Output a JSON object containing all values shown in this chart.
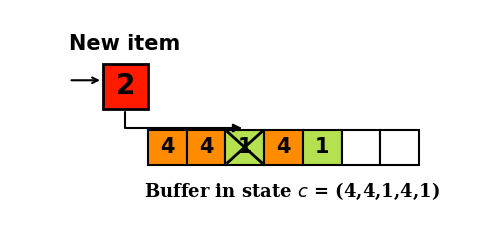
{
  "title_text": "New item",
  "new_item_label": "2",
  "new_item_color": "#ff1a00",
  "new_item_border": "#000000",
  "buffer_cells": [
    {
      "label": "4",
      "color": "#ff8c00",
      "crossed": false
    },
    {
      "label": "4",
      "color": "#ff8c00",
      "crossed": false
    },
    {
      "label": "1",
      "color": "#b5e050",
      "crossed": true
    },
    {
      "label": "4",
      "color": "#ff8c00",
      "crossed": false
    },
    {
      "label": "1",
      "color": "#b5e050",
      "crossed": false
    },
    {
      "label": "",
      "color": "#ffffff",
      "crossed": false
    },
    {
      "label": "",
      "color": "#ffffff",
      "crossed": false
    }
  ],
  "bottom_text_plain": "Buffer in state ",
  "bottom_text_italic": "c",
  "bottom_text_eq": " = (4,4,1,4,1)",
  "fig_width": 5.0,
  "fig_height": 2.39,
  "xlim": [
    0,
    5.0
  ],
  "ylim": [
    0,
    2.39
  ]
}
